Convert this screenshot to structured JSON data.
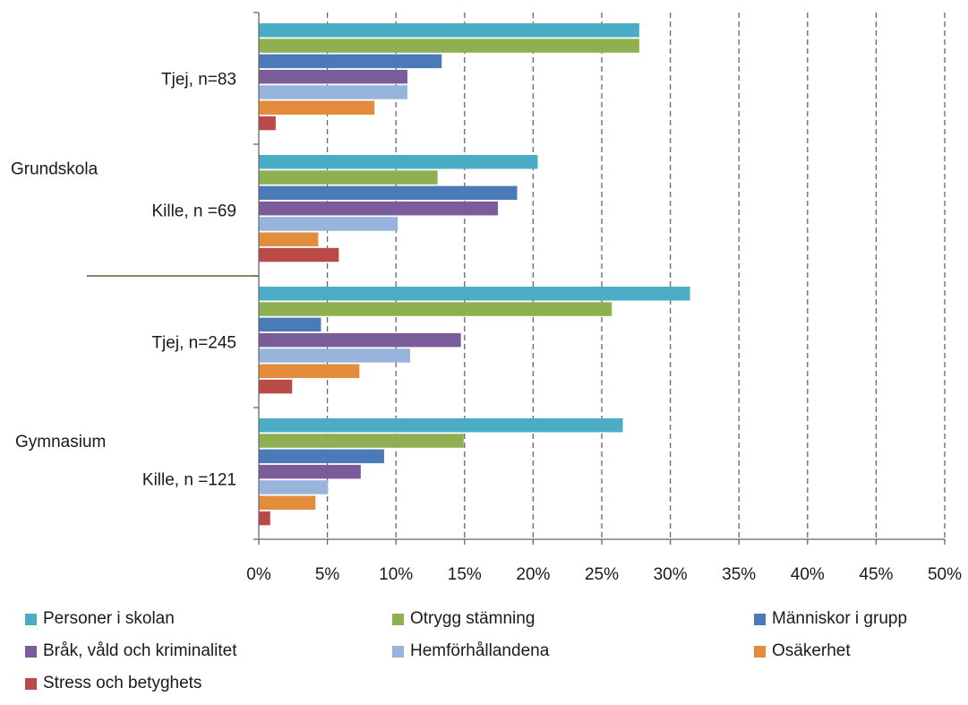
{
  "chart_data": {
    "type": "bar",
    "orientation": "horizontal",
    "groups": [
      "Grundskola",
      "Gymnasium"
    ],
    "categories": [
      "Tjej, n=83",
      "Kille, n =69",
      "Tjej, n=245",
      "Kille, n =121"
    ],
    "category_group": [
      0,
      0,
      1,
      1
    ],
    "x_ticks": [
      "0%",
      "5%",
      "10%",
      "15%",
      "20%",
      "25%",
      "30%",
      "35%",
      "40%",
      "45%",
      "50%"
    ],
    "xlim": [
      0,
      50
    ],
    "grid": "vertical dashed",
    "legend_position": "bottom",
    "series": [
      {
        "name": "Personer i skolan",
        "color": "#4bacc6",
        "values": [
          27.7,
          20.3,
          31.4,
          26.5
        ]
      },
      {
        "name": "Otrygg stämning",
        "color": "#8fb050",
        "values": [
          27.7,
          13.0,
          25.7,
          14.9
        ]
      },
      {
        "name": "Människor i grupp",
        "color": "#4a7ab7",
        "values": [
          13.3,
          18.8,
          4.5,
          9.1
        ]
      },
      {
        "name": "Bråk, våld och kriminalitet",
        "color": "#7a5c9a",
        "values": [
          10.8,
          17.4,
          14.7,
          7.4
        ]
      },
      {
        "name": "Hemförhållandena",
        "color": "#98b4dc",
        "values": [
          10.8,
          10.1,
          11.0,
          5.0
        ]
      },
      {
        "name": "Osäkerhet",
        "color": "#e38d3c",
        "values": [
          8.4,
          4.3,
          7.3,
          4.1
        ]
      },
      {
        "name": "Stress och betyghets",
        "color": "#b94a48",
        "values": [
          1.2,
          5.8,
          2.4,
          0.8
        ]
      }
    ]
  }
}
